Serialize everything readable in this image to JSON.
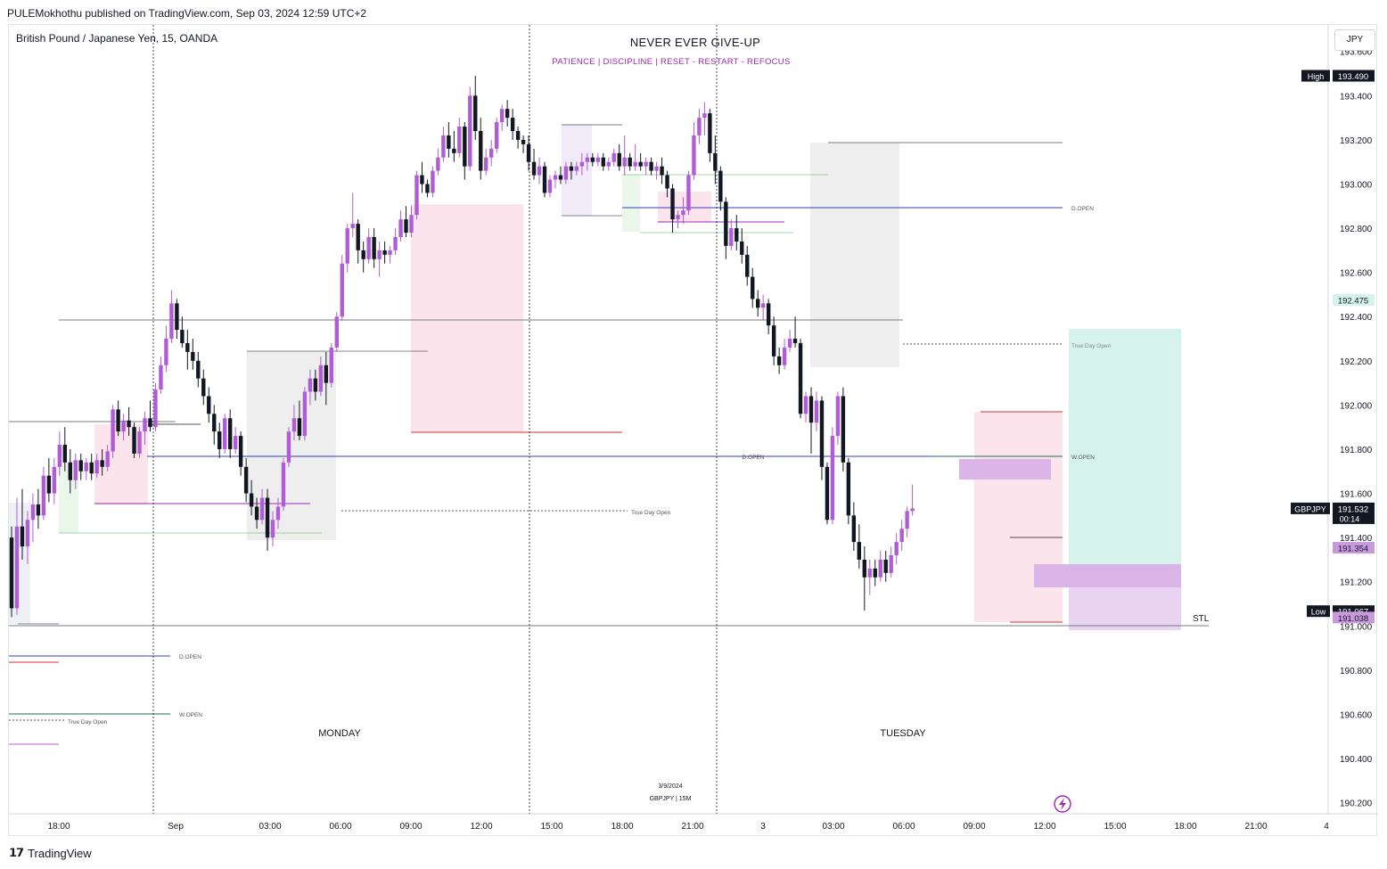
{
  "header": {
    "published": "PULEMokhothu published on TradingView.com, Sep 03, 2024 12:59 UTC+2"
  },
  "symbol_label": "British Pound / Japanese Yen, 15, OANDA",
  "currency_button": "JPY",
  "title": "NEVER EVER GIVE-UP",
  "subtitle": "PATIENCE   |   DISCIPLINE   |   RESET - RESTART - REFOCUS",
  "footer": {
    "brand": "TradingView"
  },
  "colors": {
    "bull": "#b05cd6",
    "bear": "#131722",
    "pink_zone": "#fce4ec",
    "grey_zone": "#eeeeee",
    "target_zone": "#d6f2ec",
    "purple_zone": "#dbb5e8",
    "dopen": "#2f3fbf",
    "wopen": "#1e6b5e",
    "red": "#d32f2f"
  },
  "chart_data": {
    "type": "candlestick",
    "symbol": "GBPJPY",
    "timeframe": "15",
    "ylim": [
      190.15,
      193.72
    ],
    "y_ticks": [
      "193.600",
      "193.400",
      "193.200",
      "193.000",
      "192.800",
      "192.600",
      "192.400",
      "192.200",
      "192.000",
      "191.800",
      "191.600",
      "191.400",
      "191.200",
      "191.000",
      "190.800",
      "190.600",
      "190.400",
      "190.200"
    ],
    "x_ticks": [
      "18:00",
      "Sep",
      "03:00",
      "06:00",
      "09:00",
      "12:00",
      "15:00",
      "18:00",
      "21:00",
      "3",
      "03:00",
      "06:00",
      "09:00",
      "12:00",
      "15:00",
      "18:00",
      "21:00",
      "4"
    ],
    "price_badges": [
      {
        "label": "High",
        "value": "193.490",
        "price": 193.49,
        "style": "dark"
      },
      {
        "label": "",
        "value": "192.475",
        "price": 192.475,
        "style": "teal"
      },
      {
        "label": "GBPJPY",
        "value": "191.532",
        "extra": "00:14",
        "price": 191.532,
        "style": "dark"
      },
      {
        "label": "",
        "value": "191.354",
        "price": 191.354,
        "style": "purple"
      },
      {
        "label": "Low",
        "value": "191.067",
        "price": 191.067,
        "style": "dark"
      },
      {
        "label": "",
        "value": "191.038",
        "price": 191.038,
        "style": "purple"
      }
    ],
    "annotations": [
      {
        "text": "D.OPEN",
        "price": 193.06
      },
      {
        "text": "True Day Open",
        "price": 192.4
      },
      {
        "text": "W.OPEN",
        "price": 191.87
      },
      {
        "text": "D.OPEN",
        "price": 191.87
      },
      {
        "text": "True Day Open",
        "price": 191.6
      },
      {
        "text": "STL",
        "price": 191.1
      },
      {
        "text": "D.OPEN",
        "price": null
      },
      {
        "text": "W.OPEN",
        "price": null
      },
      {
        "text": "True Day Open",
        "price": null
      }
    ],
    "sessions": [
      "MONDAY",
      "TUESDAY"
    ],
    "watermark": {
      "date": "3/9/2024",
      "symbol": "GBPJPY | 15M"
    },
    "candles": [
      {
        "o": 191.4,
        "h": 191.45,
        "l": 191.04,
        "c": 191.08
      },
      {
        "o": 191.08,
        "h": 191.58,
        "l": 191.05,
        "c": 191.45
      },
      {
        "o": 191.45,
        "h": 191.62,
        "l": 191.3,
        "c": 191.36
      },
      {
        "o": 191.36,
        "h": 191.52,
        "l": 191.28,
        "c": 191.48
      },
      {
        "o": 191.48,
        "h": 191.6,
        "l": 191.38,
        "c": 191.55
      },
      {
        "o": 191.55,
        "h": 191.62,
        "l": 191.44,
        "c": 191.5
      },
      {
        "o": 191.5,
        "h": 191.72,
        "l": 191.48,
        "c": 191.68
      },
      {
        "o": 191.68,
        "h": 191.76,
        "l": 191.56,
        "c": 191.6
      },
      {
        "o": 191.6,
        "h": 191.76,
        "l": 191.55,
        "c": 191.72
      },
      {
        "o": 191.72,
        "h": 191.88,
        "l": 191.68,
        "c": 191.82
      },
      {
        "o": 191.82,
        "h": 191.9,
        "l": 191.7,
        "c": 191.74
      },
      {
        "o": 191.74,
        "h": 191.8,
        "l": 191.6,
        "c": 191.66
      },
      {
        "o": 191.66,
        "h": 191.78,
        "l": 191.62,
        "c": 191.75
      },
      {
        "o": 191.75,
        "h": 191.78,
        "l": 191.66,
        "c": 191.7
      },
      {
        "o": 191.7,
        "h": 191.76,
        "l": 191.66,
        "c": 191.74
      },
      {
        "o": 191.74,
        "h": 191.78,
        "l": 191.66,
        "c": 191.69
      },
      {
        "o": 191.69,
        "h": 191.78,
        "l": 191.67,
        "c": 191.75
      },
      {
        "o": 191.75,
        "h": 191.8,
        "l": 191.68,
        "c": 191.72
      },
      {
        "o": 191.72,
        "h": 191.82,
        "l": 191.7,
        "c": 191.79
      },
      {
        "o": 191.79,
        "h": 192.0,
        "l": 191.76,
        "c": 191.98
      },
      {
        "o": 191.98,
        "h": 192.02,
        "l": 191.86,
        "c": 191.88
      },
      {
        "o": 191.88,
        "h": 191.96,
        "l": 191.84,
        "c": 191.93
      },
      {
        "o": 191.93,
        "h": 191.99,
        "l": 191.86,
        "c": 191.9
      },
      {
        "o": 191.9,
        "h": 191.92,
        "l": 191.76,
        "c": 191.78
      },
      {
        "o": 191.78,
        "h": 191.9,
        "l": 191.76,
        "c": 191.88
      },
      {
        "o": 191.88,
        "h": 191.97,
        "l": 191.82,
        "c": 191.94
      },
      {
        "o": 191.94,
        "h": 192.02,
        "l": 191.88,
        "c": 191.9
      },
      {
        "o": 191.9,
        "h": 192.1,
        "l": 191.88,
        "c": 192.07
      },
      {
        "o": 192.07,
        "h": 192.22,
        "l": 192.05,
        "c": 192.18
      },
      {
        "o": 192.18,
        "h": 192.36,
        "l": 192.15,
        "c": 192.3
      },
      {
        "o": 192.3,
        "h": 192.52,
        "l": 192.28,
        "c": 192.46
      },
      {
        "o": 192.46,
        "h": 192.48,
        "l": 192.3,
        "c": 192.34
      },
      {
        "o": 192.34,
        "h": 192.4,
        "l": 192.26,
        "c": 192.28
      },
      {
        "o": 192.28,
        "h": 192.34,
        "l": 192.16,
        "c": 192.24
      },
      {
        "o": 192.24,
        "h": 192.3,
        "l": 192.16,
        "c": 192.2
      },
      {
        "o": 192.2,
        "h": 192.24,
        "l": 192.08,
        "c": 192.12
      },
      {
        "o": 192.12,
        "h": 192.16,
        "l": 192.0,
        "c": 192.04
      },
      {
        "o": 192.04,
        "h": 192.08,
        "l": 191.92,
        "c": 191.96
      },
      {
        "o": 191.96,
        "h": 192.0,
        "l": 191.82,
        "c": 191.88
      },
      {
        "o": 191.88,
        "h": 191.92,
        "l": 191.76,
        "c": 191.8
      },
      {
        "o": 191.8,
        "h": 191.96,
        "l": 191.78,
        "c": 191.94
      },
      {
        "o": 191.94,
        "h": 191.98,
        "l": 191.76,
        "c": 191.8
      },
      {
        "o": 191.8,
        "h": 191.9,
        "l": 191.78,
        "c": 191.86
      },
      {
        "o": 191.86,
        "h": 191.88,
        "l": 191.68,
        "c": 191.72
      },
      {
        "o": 191.72,
        "h": 191.76,
        "l": 191.56,
        "c": 191.6
      },
      {
        "o": 191.6,
        "h": 191.66,
        "l": 191.5,
        "c": 191.54
      },
      {
        "o": 191.54,
        "h": 191.58,
        "l": 191.44,
        "c": 191.48
      },
      {
        "o": 191.48,
        "h": 191.62,
        "l": 191.46,
        "c": 191.58
      },
      {
        "o": 191.58,
        "h": 191.62,
        "l": 191.34,
        "c": 191.4
      },
      {
        "o": 191.4,
        "h": 191.52,
        "l": 191.36,
        "c": 191.48
      },
      {
        "o": 191.48,
        "h": 191.58,
        "l": 191.44,
        "c": 191.54
      },
      {
        "o": 191.54,
        "h": 191.76,
        "l": 191.52,
        "c": 191.74
      },
      {
        "o": 191.74,
        "h": 191.9,
        "l": 191.72,
        "c": 191.88
      },
      {
        "o": 191.88,
        "h": 192.0,
        "l": 191.84,
        "c": 191.94
      },
      {
        "o": 191.94,
        "h": 192.02,
        "l": 191.84,
        "c": 191.86
      },
      {
        "o": 191.86,
        "h": 192.08,
        "l": 191.84,
        "c": 192.06
      },
      {
        "o": 192.06,
        "h": 192.16,
        "l": 192.0,
        "c": 192.12
      },
      {
        "o": 192.12,
        "h": 192.16,
        "l": 192.02,
        "c": 192.06
      },
      {
        "o": 192.06,
        "h": 192.22,
        "l": 192.04,
        "c": 192.18
      },
      {
        "o": 192.18,
        "h": 192.24,
        "l": 192.0,
        "c": 192.1
      },
      {
        "o": 192.1,
        "h": 192.28,
        "l": 192.08,
        "c": 192.26
      },
      {
        "o": 192.26,
        "h": 192.42,
        "l": 192.24,
        "c": 192.4
      },
      {
        "o": 192.4,
        "h": 192.68,
        "l": 192.38,
        "c": 192.64
      },
      {
        "o": 192.64,
        "h": 192.82,
        "l": 192.6,
        "c": 192.8
      },
      {
        "o": 192.8,
        "h": 192.96,
        "l": 192.76,
        "c": 192.82
      },
      {
        "o": 192.82,
        "h": 192.84,
        "l": 192.64,
        "c": 192.7
      },
      {
        "o": 192.7,
        "h": 192.74,
        "l": 192.6,
        "c": 192.66
      },
      {
        "o": 192.66,
        "h": 192.8,
        "l": 192.64,
        "c": 192.76
      },
      {
        "o": 192.76,
        "h": 192.8,
        "l": 192.62,
        "c": 192.66
      },
      {
        "o": 192.66,
        "h": 192.74,
        "l": 192.58,
        "c": 192.7
      },
      {
        "o": 192.7,
        "h": 192.74,
        "l": 192.64,
        "c": 192.68
      },
      {
        "o": 192.68,
        "h": 192.72,
        "l": 192.64,
        "c": 192.7
      },
      {
        "o": 192.7,
        "h": 192.8,
        "l": 192.68,
        "c": 192.76
      },
      {
        "o": 192.76,
        "h": 192.88,
        "l": 192.74,
        "c": 192.84
      },
      {
        "o": 192.84,
        "h": 192.9,
        "l": 192.76,
        "c": 192.78
      },
      {
        "o": 192.78,
        "h": 192.9,
        "l": 192.76,
        "c": 192.86
      },
      {
        "o": 192.86,
        "h": 193.06,
        "l": 192.84,
        "c": 193.04
      },
      {
        "o": 193.04,
        "h": 193.1,
        "l": 192.96,
        "c": 193.0
      },
      {
        "o": 193.0,
        "h": 193.02,
        "l": 192.94,
        "c": 192.96
      },
      {
        "o": 192.96,
        "h": 193.08,
        "l": 192.94,
        "c": 193.06
      },
      {
        "o": 193.06,
        "h": 193.16,
        "l": 193.04,
        "c": 193.12
      },
      {
        "o": 193.12,
        "h": 193.26,
        "l": 193.1,
        "c": 193.22
      },
      {
        "o": 193.22,
        "h": 193.28,
        "l": 193.12,
        "c": 193.16
      },
      {
        "o": 193.16,
        "h": 193.24,
        "l": 193.1,
        "c": 193.14
      },
      {
        "o": 193.14,
        "h": 193.3,
        "l": 193.12,
        "c": 193.26
      },
      {
        "o": 193.26,
        "h": 193.28,
        "l": 193.02,
        "c": 193.08
      },
      {
        "o": 193.08,
        "h": 193.44,
        "l": 193.06,
        "c": 193.4
      },
      {
        "o": 193.4,
        "h": 193.49,
        "l": 193.2,
        "c": 193.24
      },
      {
        "o": 193.24,
        "h": 193.3,
        "l": 193.02,
        "c": 193.06
      },
      {
        "o": 193.06,
        "h": 193.16,
        "l": 193.04,
        "c": 193.12
      },
      {
        "o": 193.12,
        "h": 193.2,
        "l": 193.08,
        "c": 193.16
      },
      {
        "o": 193.16,
        "h": 193.3,
        "l": 193.14,
        "c": 193.28
      },
      {
        "o": 193.28,
        "h": 193.36,
        "l": 193.24,
        "c": 193.34
      },
      {
        "o": 193.34,
        "h": 193.38,
        "l": 193.26,
        "c": 193.3
      },
      {
        "o": 193.3,
        "h": 193.34,
        "l": 193.2,
        "c": 193.24
      },
      {
        "o": 193.24,
        "h": 193.26,
        "l": 193.16,
        "c": 193.2
      },
      {
        "o": 193.2,
        "h": 193.22,
        "l": 193.14,
        "c": 193.18
      },
      {
        "o": 193.18,
        "h": 193.22,
        "l": 193.06,
        "c": 193.1
      },
      {
        "o": 193.1,
        "h": 193.16,
        "l": 193.02,
        "c": 193.04
      },
      {
        "o": 193.04,
        "h": 193.12,
        "l": 193.0,
        "c": 193.08
      },
      {
        "o": 193.08,
        "h": 193.1,
        "l": 192.94,
        "c": 192.96
      },
      {
        "o": 192.96,
        "h": 193.04,
        "l": 192.94,
        "c": 193.02
      },
      {
        "o": 193.02,
        "h": 193.06,
        "l": 192.98,
        "c": 193.04
      },
      {
        "o": 193.04,
        "h": 193.08,
        "l": 193.0,
        "c": 193.02
      },
      {
        "o": 193.02,
        "h": 193.1,
        "l": 193.0,
        "c": 193.08
      },
      {
        "o": 193.08,
        "h": 193.1,
        "l": 193.02,
        "c": 193.06
      },
      {
        "o": 193.06,
        "h": 193.1,
        "l": 193.04,
        "c": 193.08
      },
      {
        "o": 193.08,
        "h": 193.14,
        "l": 193.04,
        "c": 193.1
      },
      {
        "o": 193.1,
        "h": 193.14,
        "l": 193.06,
        "c": 193.12
      },
      {
        "o": 193.12,
        "h": 193.14,
        "l": 193.08,
        "c": 193.1
      },
      {
        "o": 193.1,
        "h": 193.14,
        "l": 193.08,
        "c": 193.12
      },
      {
        "o": 193.12,
        "h": 193.14,
        "l": 193.06,
        "c": 193.08
      },
      {
        "o": 193.08,
        "h": 193.12,
        "l": 193.06,
        "c": 193.1
      },
      {
        "o": 193.1,
        "h": 193.16,
        "l": 193.08,
        "c": 193.14
      },
      {
        "o": 193.14,
        "h": 193.18,
        "l": 193.06,
        "c": 193.08
      },
      {
        "o": 193.08,
        "h": 193.22,
        "l": 193.04,
        "c": 193.12
      },
      {
        "o": 193.12,
        "h": 193.14,
        "l": 193.06,
        "c": 193.08
      },
      {
        "o": 193.08,
        "h": 193.18,
        "l": 193.06,
        "c": 193.1
      },
      {
        "o": 193.1,
        "h": 193.14,
        "l": 193.06,
        "c": 193.08
      },
      {
        "o": 193.08,
        "h": 193.12,
        "l": 193.04,
        "c": 193.1
      },
      {
        "o": 193.1,
        "h": 193.12,
        "l": 193.04,
        "c": 193.06
      },
      {
        "o": 193.06,
        "h": 193.1,
        "l": 193.02,
        "c": 193.08
      },
      {
        "o": 193.08,
        "h": 193.12,
        "l": 193.0,
        "c": 193.04
      },
      {
        "o": 193.04,
        "h": 193.06,
        "l": 192.94,
        "c": 192.98
      },
      {
        "o": 192.98,
        "h": 193.0,
        "l": 192.78,
        "c": 192.84
      },
      {
        "o": 192.84,
        "h": 192.88,
        "l": 192.8,
        "c": 192.86
      },
      {
        "o": 192.86,
        "h": 192.94,
        "l": 192.82,
        "c": 192.88
      },
      {
        "o": 192.88,
        "h": 193.06,
        "l": 192.86,
        "c": 193.04
      },
      {
        "o": 193.04,
        "h": 193.28,
        "l": 193.02,
        "c": 193.22
      },
      {
        "o": 193.22,
        "h": 193.34,
        "l": 193.18,
        "c": 193.3
      },
      {
        "o": 193.3,
        "h": 193.37,
        "l": 193.22,
        "c": 193.32
      },
      {
        "o": 193.32,
        "h": 193.34,
        "l": 193.1,
        "c": 193.14
      },
      {
        "o": 193.14,
        "h": 193.22,
        "l": 193.0,
        "c": 193.06
      },
      {
        "o": 193.06,
        "h": 193.08,
        "l": 192.88,
        "c": 192.92
      },
      {
        "o": 192.92,
        "h": 192.94,
        "l": 192.66,
        "c": 192.72
      },
      {
        "o": 192.72,
        "h": 192.84,
        "l": 192.7,
        "c": 192.8
      },
      {
        "o": 192.8,
        "h": 192.86,
        "l": 192.7,
        "c": 192.74
      },
      {
        "o": 192.74,
        "h": 192.8,
        "l": 192.64,
        "c": 192.68
      },
      {
        "o": 192.68,
        "h": 192.72,
        "l": 192.54,
        "c": 192.58
      },
      {
        "o": 192.58,
        "h": 192.62,
        "l": 192.44,
        "c": 192.48
      },
      {
        "o": 192.48,
        "h": 192.52,
        "l": 192.4,
        "c": 192.44
      },
      {
        "o": 192.44,
        "h": 192.5,
        "l": 192.38,
        "c": 192.46
      },
      {
        "o": 192.46,
        "h": 192.48,
        "l": 192.32,
        "c": 192.36
      },
      {
        "o": 192.36,
        "h": 192.4,
        "l": 192.18,
        "c": 192.22
      },
      {
        "o": 192.22,
        "h": 192.26,
        "l": 192.14,
        "c": 192.18
      },
      {
        "o": 192.18,
        "h": 192.3,
        "l": 192.16,
        "c": 192.26
      },
      {
        "o": 192.26,
        "h": 192.34,
        "l": 192.24,
        "c": 192.3
      },
      {
        "o": 192.3,
        "h": 192.4,
        "l": 192.26,
        "c": 192.28
      },
      {
        "o": 192.28,
        "h": 192.3,
        "l": 191.94,
        "c": 191.96
      },
      {
        "o": 191.96,
        "h": 192.06,
        "l": 191.92,
        "c": 192.04
      },
      {
        "o": 192.04,
        "h": 192.08,
        "l": 191.78,
        "c": 191.92
      },
      {
        "o": 191.92,
        "h": 192.06,
        "l": 191.88,
        "c": 192.02
      },
      {
        "o": 192.02,
        "h": 192.04,
        "l": 191.66,
        "c": 191.72
      },
      {
        "o": 191.72,
        "h": 191.74,
        "l": 191.46,
        "c": 191.48
      },
      {
        "o": 191.48,
        "h": 191.9,
        "l": 191.46,
        "c": 191.86
      },
      {
        "o": 191.86,
        "h": 192.06,
        "l": 191.82,
        "c": 192.04
      },
      {
        "o": 192.04,
        "h": 192.08,
        "l": 191.7,
        "c": 191.74
      },
      {
        "o": 191.74,
        "h": 191.76,
        "l": 191.46,
        "c": 191.5
      },
      {
        "o": 191.5,
        "h": 191.56,
        "l": 191.34,
        "c": 191.38
      },
      {
        "o": 191.38,
        "h": 191.46,
        "l": 191.26,
        "c": 191.3
      },
      {
        "o": 191.3,
        "h": 191.36,
        "l": 191.07,
        "c": 191.22
      },
      {
        "o": 191.22,
        "h": 191.3,
        "l": 191.14,
        "c": 191.26
      },
      {
        "o": 191.26,
        "h": 191.3,
        "l": 191.18,
        "c": 191.22
      },
      {
        "o": 191.22,
        "h": 191.34,
        "l": 191.2,
        "c": 191.3
      },
      {
        "o": 191.3,
        "h": 191.34,
        "l": 191.2,
        "c": 191.24
      },
      {
        "o": 191.24,
        "h": 191.36,
        "l": 191.22,
        "c": 191.32
      },
      {
        "o": 191.32,
        "h": 191.42,
        "l": 191.28,
        "c": 191.38
      },
      {
        "o": 191.38,
        "h": 191.48,
        "l": 191.34,
        "c": 191.44
      },
      {
        "o": 191.44,
        "h": 191.54,
        "l": 191.4,
        "c": 191.52
      },
      {
        "o": 191.52,
        "h": 191.64,
        "l": 191.5,
        "c": 191.532
      }
    ]
  }
}
